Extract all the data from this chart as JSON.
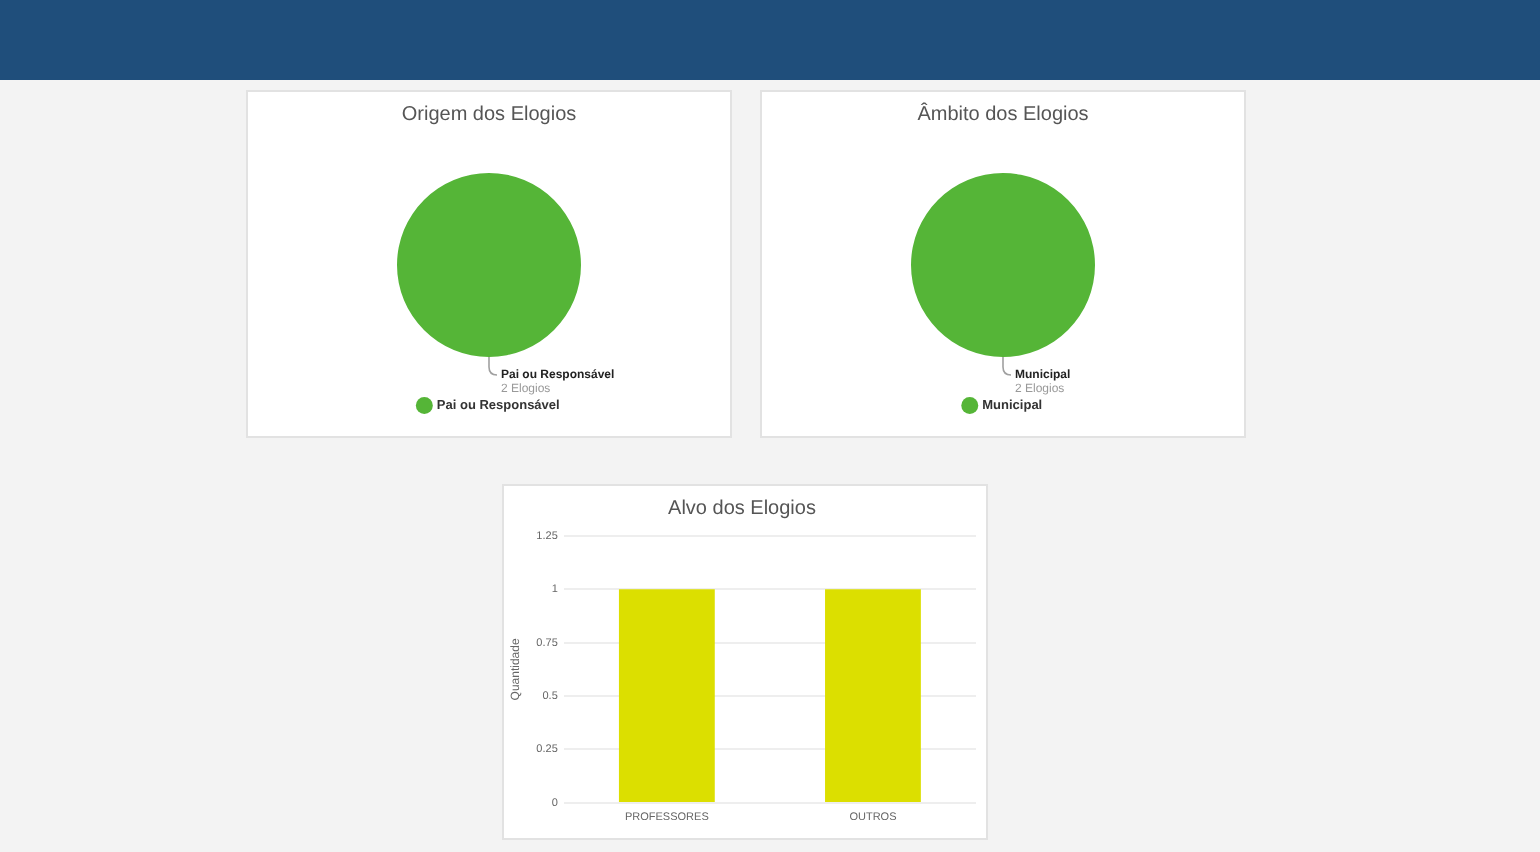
{
  "chart_data": [
    {
      "type": "pie",
      "title": "Origem dos Elogios",
      "categories": [
        "Pai ou Responsável"
      ],
      "values": [
        2
      ],
      "colors": [
        "#55b537"
      ],
      "value_labels": [
        "2 Elogios"
      ],
      "legend": "bottom"
    },
    {
      "type": "pie",
      "title": "Âmbito dos Elogios",
      "categories": [
        "Municipal"
      ],
      "values": [
        2
      ],
      "colors": [
        "#55b537"
      ],
      "value_labels": [
        "2 Elogios"
      ],
      "legend": "bottom"
    },
    {
      "type": "bar",
      "title": "Alvo dos Elogios",
      "categories": [
        "PROFESSORES",
        "OUTROS"
      ],
      "values": [
        1,
        1
      ],
      "color": "#dcdf00",
      "ylabel": "Quantidade",
      "ylim": [
        0,
        1.25
      ],
      "yticks": [
        0,
        0.25,
        0.5,
        0.75,
        1,
        1.25
      ],
      "grid": "y"
    }
  ]
}
